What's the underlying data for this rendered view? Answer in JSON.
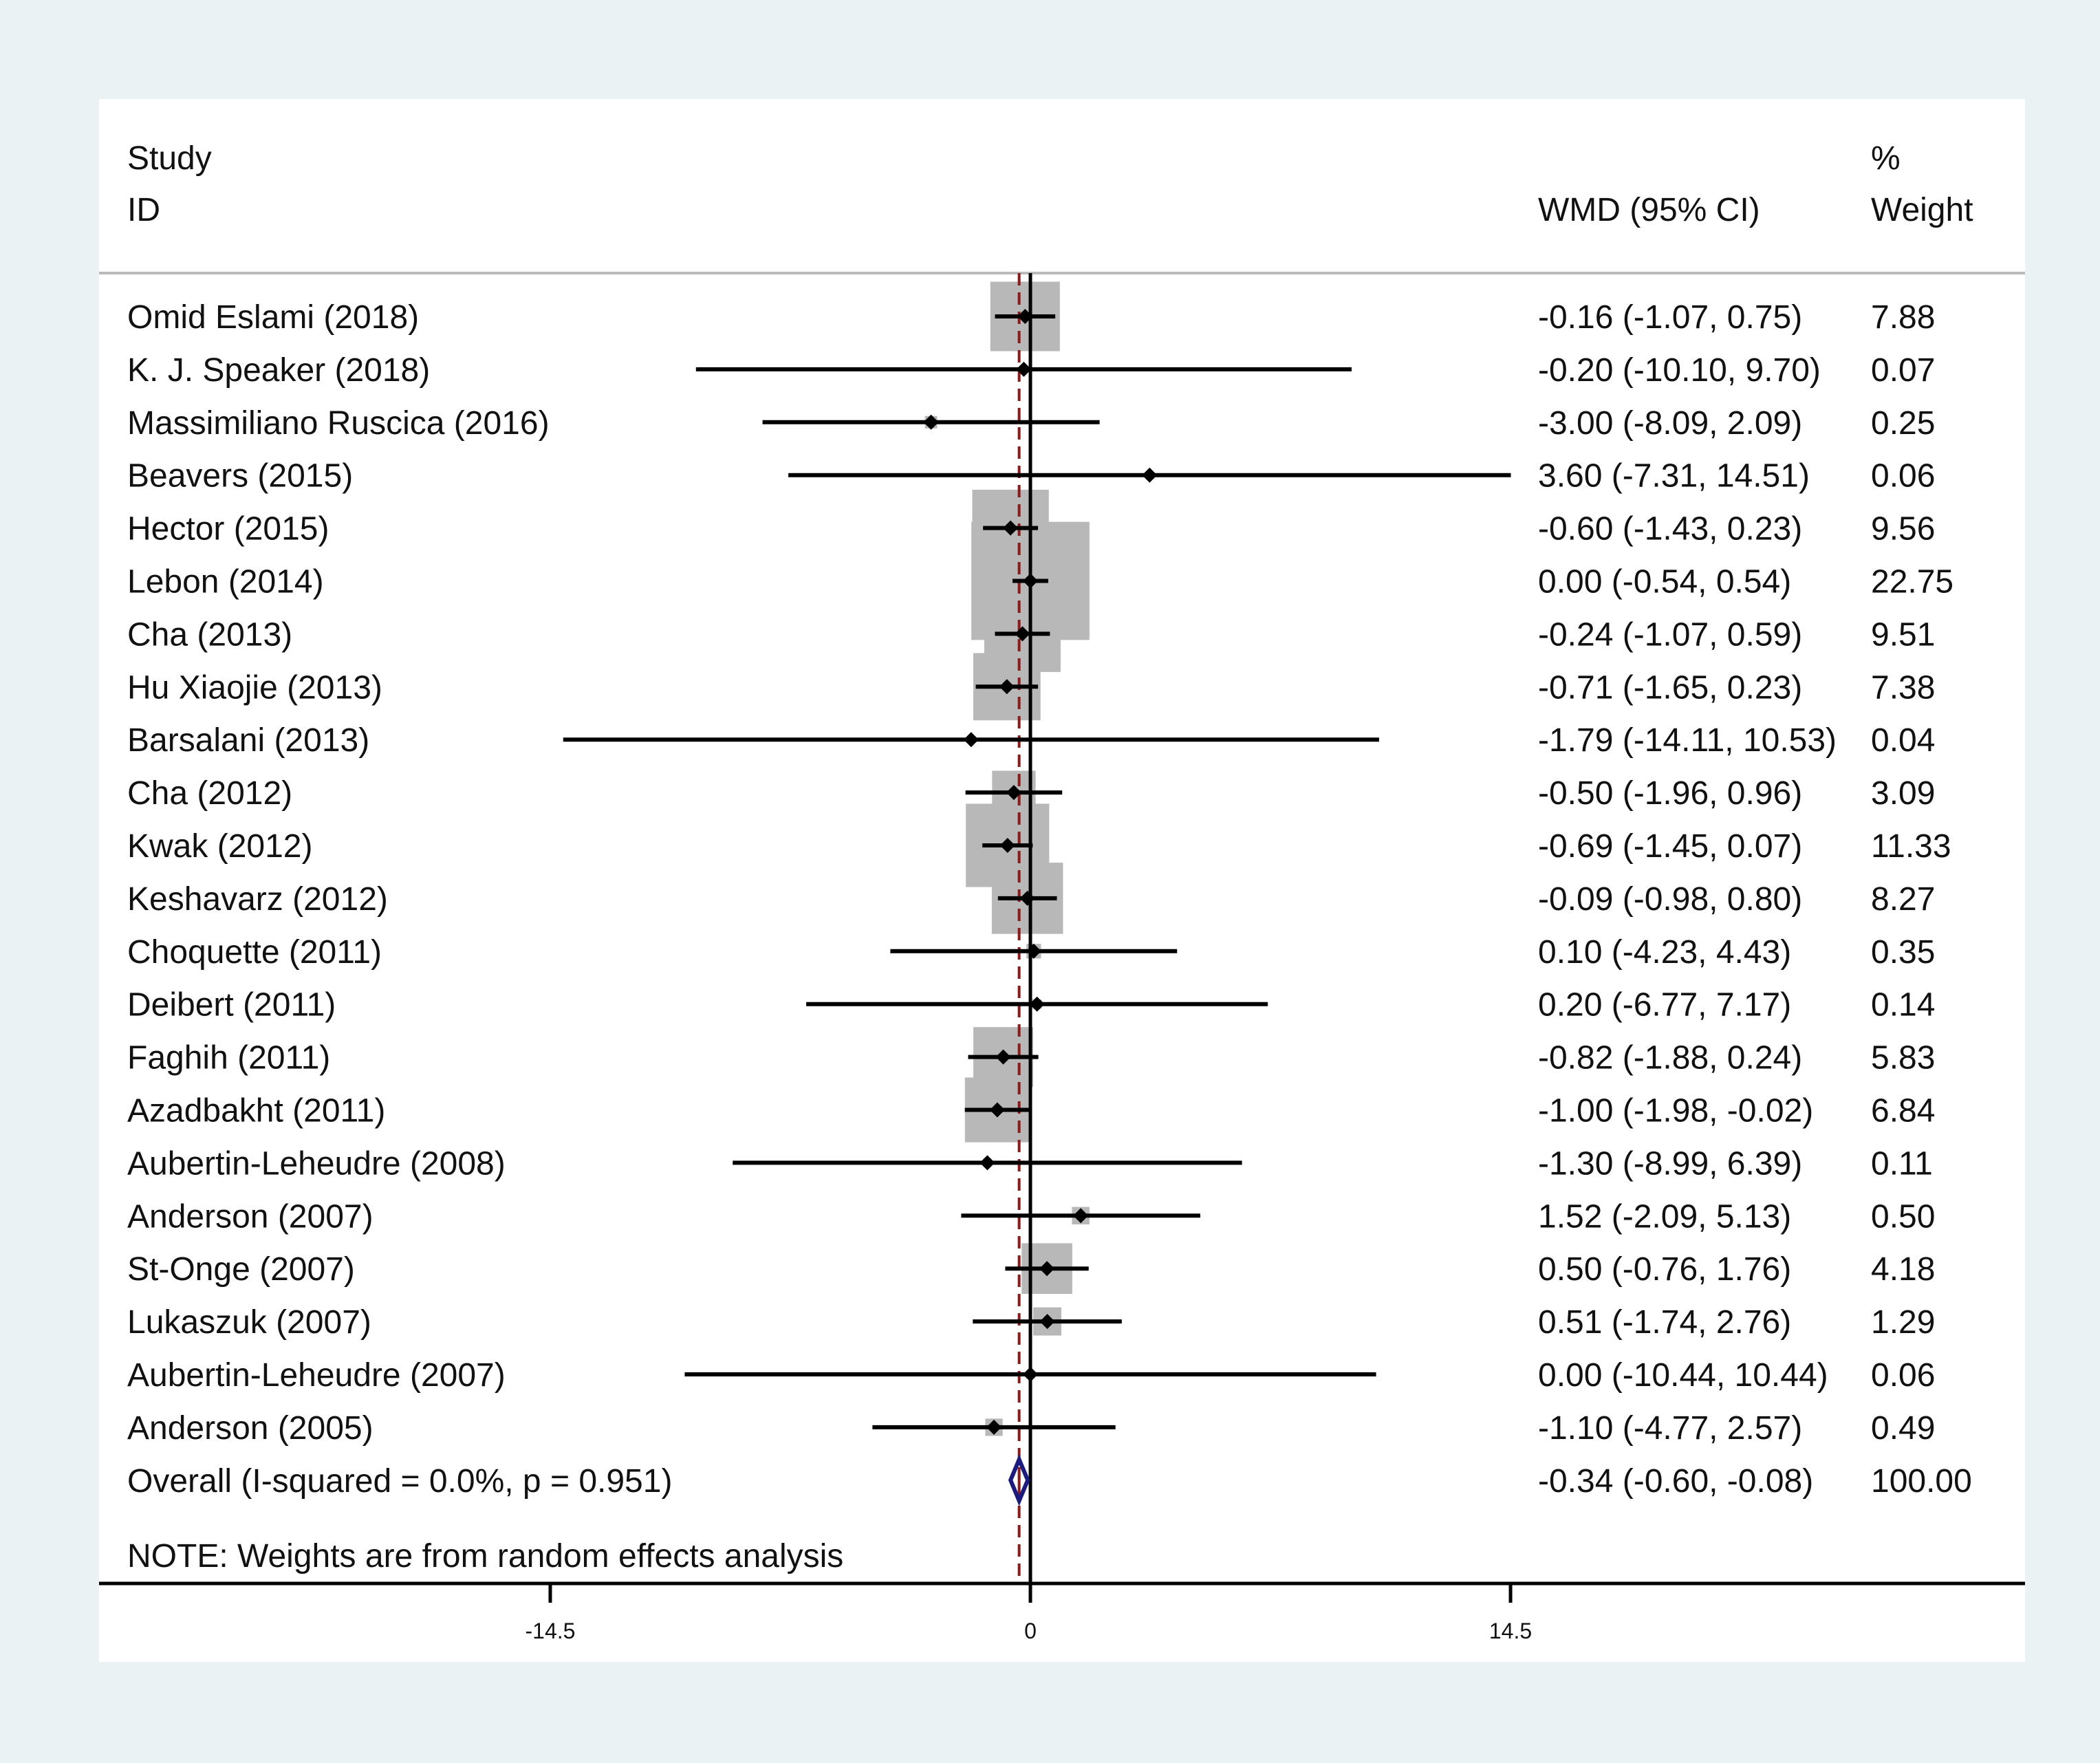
{
  "chart_data": {
    "type": "forest",
    "columns": {
      "study_header_line1": "Study",
      "study_header_line2": "ID",
      "effect_header": "WMD (95% CI)",
      "weight_header_line1": "%",
      "weight_header_line2": "Weight"
    },
    "studies": [
      {
        "label": "Omid Eslami (2018)",
        "est": -0.16,
        "lo": -1.07,
        "hi": 0.75,
        "ci_text": "-0.16 (-1.07, 0.75)",
        "weight": 7.88,
        "weight_text": "7.88"
      },
      {
        "label": "K. J. Speaker (2018)",
        "est": -0.2,
        "lo": -10.1,
        "hi": 9.7,
        "ci_text": "-0.20 (-10.10, 9.70)",
        "weight": 0.07,
        "weight_text": "0.07"
      },
      {
        "label": "Massimiliano Ruscica (2016)",
        "est": -3.0,
        "lo": -8.09,
        "hi": 2.09,
        "ci_text": "-3.00 (-8.09, 2.09)",
        "weight": 0.25,
        "weight_text": "0.25"
      },
      {
        "label": "Beavers (2015)",
        "est": 3.6,
        "lo": -7.31,
        "hi": 14.51,
        "ci_text": "3.60 (-7.31, 14.51)",
        "weight": 0.06,
        "weight_text": "0.06"
      },
      {
        "label": "Hector (2015)",
        "est": -0.6,
        "lo": -1.43,
        "hi": 0.23,
        "ci_text": "-0.60 (-1.43, 0.23)",
        "weight": 9.56,
        "weight_text": "9.56"
      },
      {
        "label": "Lebon (2014)",
        "est": 0.0,
        "lo": -0.54,
        "hi": 0.54,
        "ci_text": "0.00 (-0.54, 0.54)",
        "weight": 22.75,
        "weight_text": "22.75"
      },
      {
        "label": "Cha (2013)",
        "est": -0.24,
        "lo": -1.07,
        "hi": 0.59,
        "ci_text": "-0.24 (-1.07, 0.59)",
        "weight": 9.51,
        "weight_text": "9.51"
      },
      {
        "label": "Hu Xiaojie (2013)",
        "est": -0.71,
        "lo": -1.65,
        "hi": 0.23,
        "ci_text": "-0.71 (-1.65, 0.23)",
        "weight": 7.38,
        "weight_text": "7.38"
      },
      {
        "label": "Barsalani (2013)",
        "est": -1.79,
        "lo": -14.11,
        "hi": 10.53,
        "ci_text": "-1.79 (-14.11, 10.53)",
        "weight": 0.04,
        "weight_text": "0.04"
      },
      {
        "label": "Cha (2012)",
        "est": -0.5,
        "lo": -1.96,
        "hi": 0.96,
        "ci_text": "-0.50 (-1.96, 0.96)",
        "weight": 3.09,
        "weight_text": "3.09"
      },
      {
        "label": "Kwak (2012)",
        "est": -0.69,
        "lo": -1.45,
        "hi": 0.07,
        "ci_text": "-0.69 (-1.45, 0.07)",
        "weight": 11.33,
        "weight_text": "11.33"
      },
      {
        "label": "Keshavarz (2012)",
        "est": -0.09,
        "lo": -0.98,
        "hi": 0.8,
        "ci_text": "-0.09 (-0.98, 0.80)",
        "weight": 8.27,
        "weight_text": "8.27"
      },
      {
        "label": "Choquette (2011)",
        "est": 0.1,
        "lo": -4.23,
        "hi": 4.43,
        "ci_text": "0.10 (-4.23, 4.43)",
        "weight": 0.35,
        "weight_text": "0.35"
      },
      {
        "label": "Deibert (2011)",
        "est": 0.2,
        "lo": -6.77,
        "hi": 7.17,
        "ci_text": "0.20 (-6.77, 7.17)",
        "weight": 0.14,
        "weight_text": "0.14"
      },
      {
        "label": "Faghih (2011)",
        "est": -0.82,
        "lo": -1.88,
        "hi": 0.24,
        "ci_text": "-0.82 (-1.88, 0.24)",
        "weight": 5.83,
        "weight_text": "5.83"
      },
      {
        "label": "Azadbakht (2011)",
        "est": -1.0,
        "lo": -1.98,
        "hi": -0.02,
        "ci_text": "-1.00 (-1.98, -0.02)",
        "weight": 6.84,
        "weight_text": "6.84"
      },
      {
        "label": "Aubertin-Leheudre (2008)",
        "est": -1.3,
        "lo": -8.99,
        "hi": 6.39,
        "ci_text": "-1.30 (-8.99, 6.39)",
        "weight": 0.11,
        "weight_text": "0.11"
      },
      {
        "label": "Anderson (2007)",
        "est": 1.52,
        "lo": -2.09,
        "hi": 5.13,
        "ci_text": "1.52 (-2.09, 5.13)",
        "weight": 0.5,
        "weight_text": "0.50"
      },
      {
        "label": "St-Onge (2007)",
        "est": 0.5,
        "lo": -0.76,
        "hi": 1.76,
        "ci_text": "0.50 (-0.76, 1.76)",
        "weight": 4.18,
        "weight_text": "4.18"
      },
      {
        "label": "Lukaszuk (2007)",
        "est": 0.51,
        "lo": -1.74,
        "hi": 2.76,
        "ci_text": "0.51 (-1.74, 2.76)",
        "weight": 1.29,
        "weight_text": "1.29"
      },
      {
        "label": "Aubertin-Leheudre (2007)",
        "est": 0.0,
        "lo": -10.44,
        "hi": 10.44,
        "ci_text": "0.00 (-10.44, 10.44)",
        "weight": 0.06,
        "weight_text": "0.06"
      },
      {
        "label": "Anderson (2005)",
        "est": -1.1,
        "lo": -4.77,
        "hi": 2.57,
        "ci_text": "-1.10 (-4.77, 2.57)",
        "weight": 0.49,
        "weight_text": "0.49"
      }
    ],
    "overall": {
      "label": "Overall  (I-squared = 0.0%, p = 0.951)",
      "est": -0.34,
      "lo": -0.6,
      "hi": -0.08,
      "ci_text": "-0.34 (-0.60, -0.08)",
      "weight_text": "100.00"
    },
    "note": "NOTE: Weights are from random effects analysis",
    "x_axis": {
      "ticks": [
        -14.5,
        0,
        14.5
      ],
      "tick_labels": [
        "-14.5",
        "0",
        "14.5"
      ],
      "range": [
        -28.5,
        29.9
      ]
    },
    "colors": {
      "panel_bg": "#ffffff",
      "outer_bg": "#eaf2f3",
      "weight_box": "#b8b8b8",
      "ci_line": "#000000",
      "null_line": "#000000",
      "overall_line": "#8b1a1a",
      "overall_diamond_outline": "#1a1a80",
      "overall_diamond_inner": "#8b1a1a",
      "separator": "#bbbbbb"
    }
  }
}
